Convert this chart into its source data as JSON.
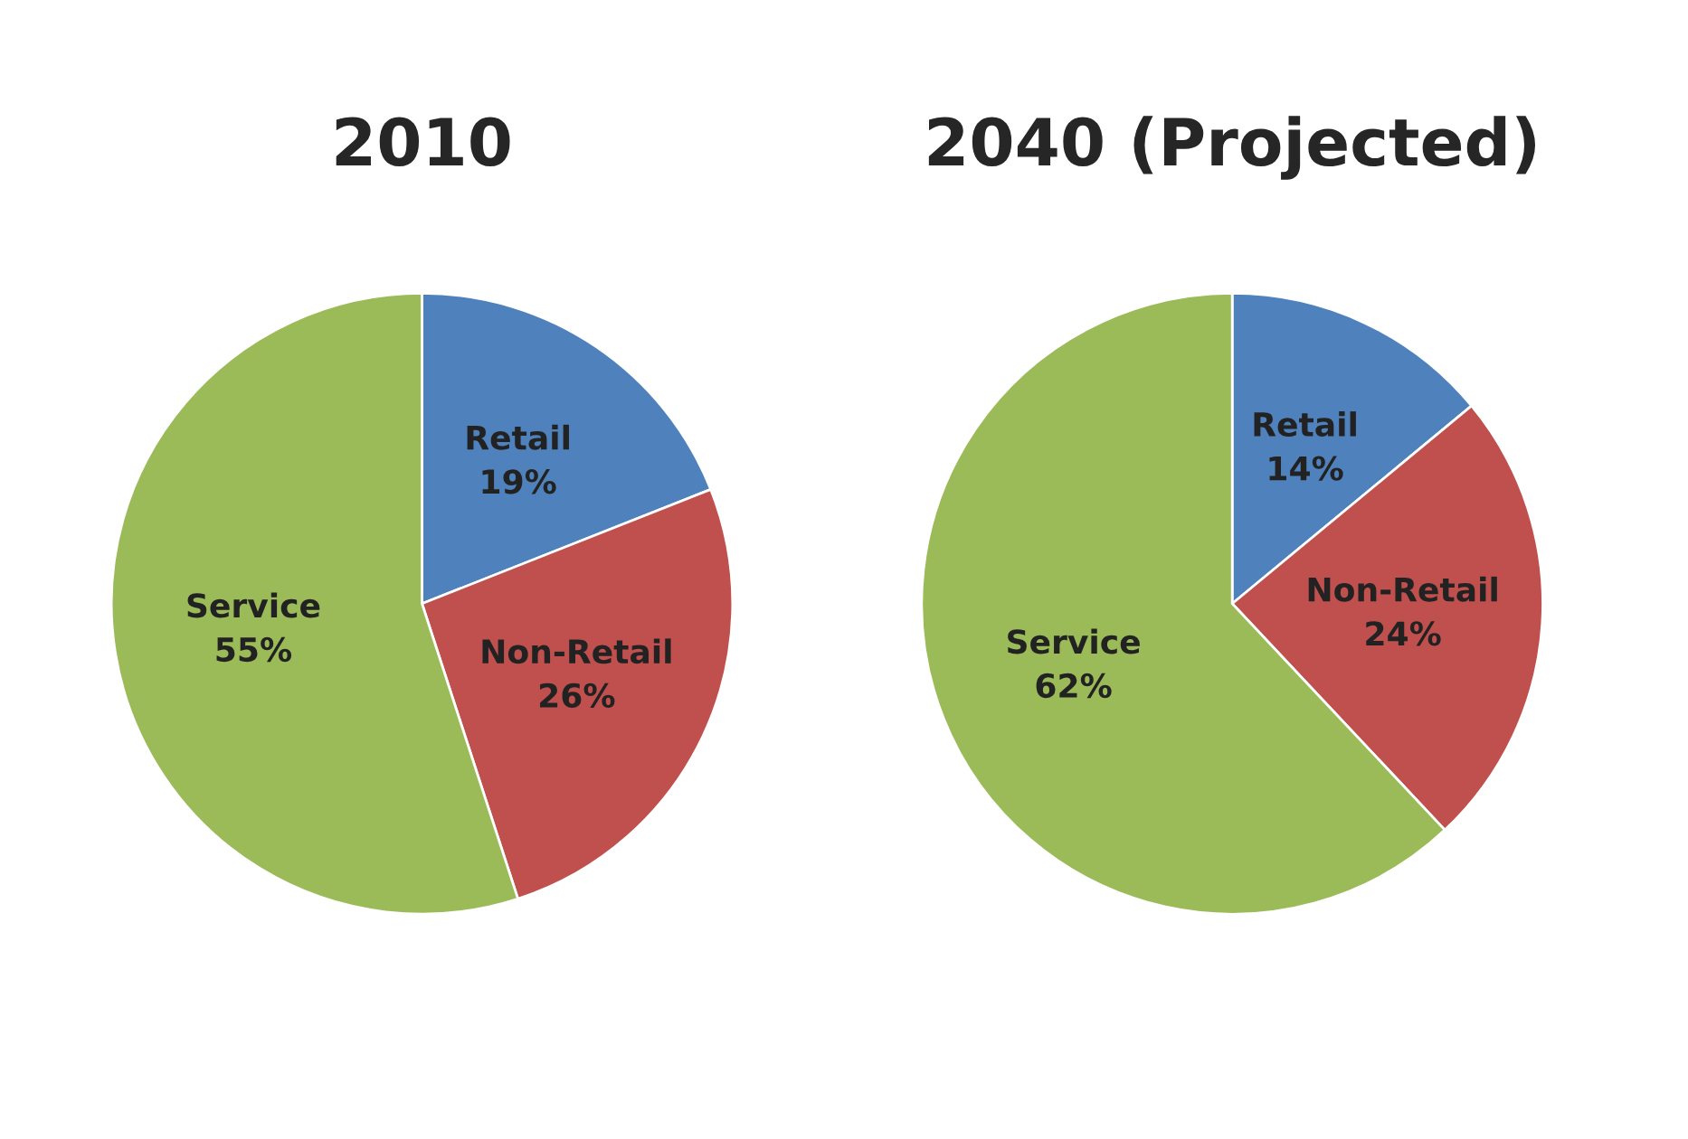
{
  "chart_data": [
    {
      "type": "pie",
      "title": "2010",
      "categories": [
        "Retail",
        "Non-Retail",
        "Service"
      ],
      "values": [
        19,
        26,
        55
      ],
      "colors": [
        "#4f81bd",
        "#c0504d",
        "#9bbb59"
      ],
      "value_labels": [
        "19%",
        "26%",
        "55%"
      ]
    },
    {
      "type": "pie",
      "title": "2040 (Projected)",
      "categories": [
        "Retail",
        "Non-Retail",
        "Service"
      ],
      "values": [
        14,
        24,
        62
      ],
      "colors": [
        "#4f81bd",
        "#c0504d",
        "#9bbb59"
      ],
      "value_labels": [
        "14%",
        "24%",
        "62%"
      ]
    }
  ]
}
